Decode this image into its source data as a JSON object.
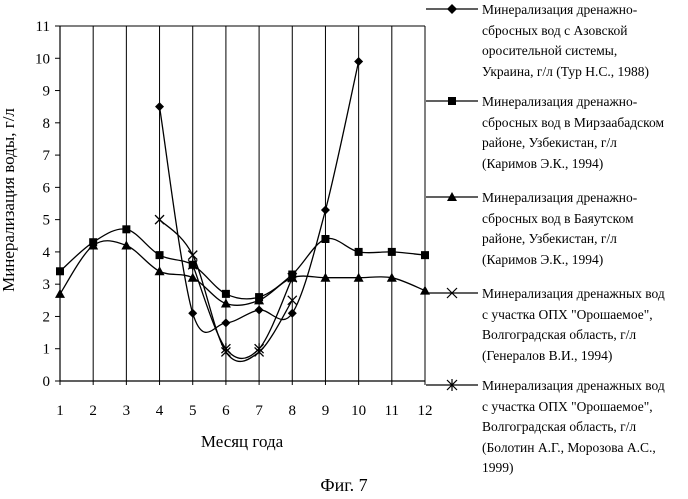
{
  "figure": {
    "caption": "Фиг. 7"
  },
  "chart_data": {
    "type": "line",
    "xlabel": "Месяц года",
    "ylabel": "Минерализация воды, г/л",
    "x_ticks": [
      1,
      2,
      3,
      4,
      5,
      6,
      7,
      8,
      9,
      10,
      11,
      12
    ],
    "y_ticks": [
      0,
      1,
      2,
      3,
      4,
      5,
      6,
      7,
      8,
      9,
      10,
      11
    ],
    "xlim": [
      1,
      12
    ],
    "ylim": [
      0,
      11
    ],
    "grid": {
      "horizontal": false,
      "vertical": true
    },
    "legend_position": "right",
    "line_color": "#000000",
    "smoothed": true,
    "series": [
      {
        "name": "Минерализация дренажно-\nсбросных вод с Азовской\nоросительной системы,\nУкраина, г/л (Тур Н.С., 1988)",
        "marker": "diamond",
        "x": [
          4,
          5,
          6,
          7,
          8,
          9,
          10
        ],
        "y": [
          8.5,
          2.1,
          1.8,
          2.2,
          2.1,
          5.3,
          9.9
        ]
      },
      {
        "name": "Минерализация дренажно-\nсбросных вод в Мирзаабадском\nрайоне, Узбекистан, г/л\n(Каримов Э.К., 1994)",
        "marker": "square",
        "x": [
          1,
          2,
          3,
          4,
          5,
          6,
          7,
          8,
          9,
          10,
          11,
          12
        ],
        "y": [
          3.4,
          4.3,
          4.7,
          3.9,
          3.6,
          2.7,
          2.6,
          3.3,
          4.4,
          4.0,
          4.0,
          3.9
        ]
      },
      {
        "name": "Минерализация дренажно-\nсбросных вод в Баяутском\nрайоне, Узбекистан, г/л\n(Каримов Э.К., 1994)",
        "marker": "triangle",
        "x": [
          1,
          2,
          3,
          4,
          5,
          6,
          7,
          8,
          9,
          10,
          11,
          12
        ],
        "y": [
          2.7,
          4.2,
          4.2,
          3.4,
          3.2,
          2.4,
          2.5,
          3.2,
          3.2,
          3.2,
          3.2,
          2.8
        ]
      },
      {
        "name": "Минерализация дренажных вод\nс участка ОПХ \"Орошаемое\",\nВолгоградская область, г/л\n(Генералов В.И., 1994)",
        "marker": "x",
        "x": [
          4,
          5,
          6,
          7,
          8
        ],
        "y": [
          5.0,
          3.9,
          0.9,
          0.9,
          2.5
        ]
      },
      {
        "name": "Минерализация дренажных вод\nс участка ОПХ \"Орошаемое\",\nВолгоградская область, г/л\n(Болотин А.Г., Морозова А.С.,\n1999)",
        "marker": "asterisk",
        "x": [
          5,
          6,
          7,
          8
        ],
        "y": [
          3.6,
          1.0,
          1.0,
          3.2
        ]
      }
    ]
  }
}
